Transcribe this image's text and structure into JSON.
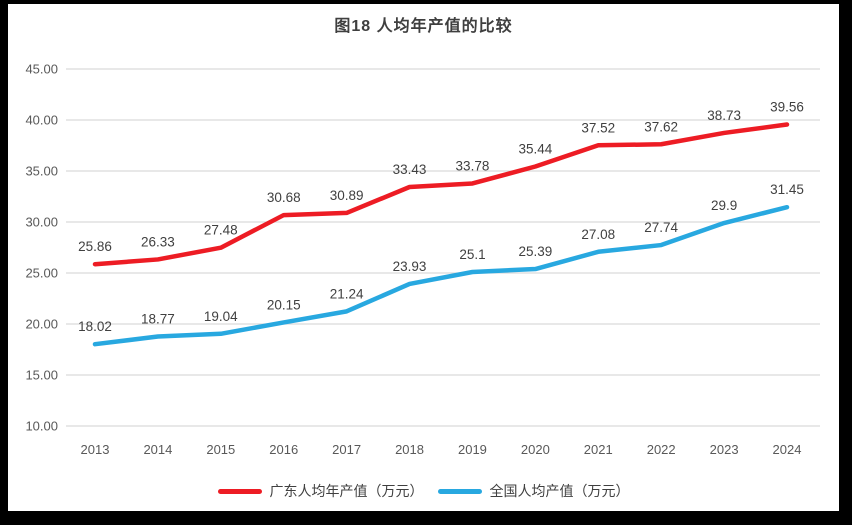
{
  "chart_data": {
    "type": "line",
    "title": "图18 人均年产值的比较",
    "categories": [
      "2013",
      "2014",
      "2015",
      "2016",
      "2017",
      "2018",
      "2019",
      "2020",
      "2021",
      "2022",
      "2023",
      "2024"
    ],
    "series": [
      {
        "name": "广东人均年产值（万元）",
        "color": "#ED1C24",
        "values": [
          25.86,
          26.33,
          27.48,
          30.68,
          30.89,
          33.43,
          33.78,
          35.44,
          37.52,
          37.62,
          38.73,
          39.56
        ]
      },
      {
        "name": "全国人均产值（万元）",
        "color": "#28A8E0",
        "values": [
          18.02,
          18.77,
          19.04,
          20.15,
          21.24,
          23.93,
          25.1,
          25.39,
          27.08,
          27.74,
          29.9,
          31.45
        ]
      }
    ],
    "ylim": [
      10,
      45
    ],
    "ytick_step": 5,
    "ytick_format_decimals": 2,
    "grid": true,
    "data_labels": true,
    "legend_position": "bottom",
    "colors": {
      "gridline": "#D9D9D9",
      "axis_tick_text": "#595959",
      "data_label_text": "#404040",
      "title_text": "#3F3F3F",
      "frame_border": "#000000",
      "background": "#FFFFFF"
    }
  }
}
